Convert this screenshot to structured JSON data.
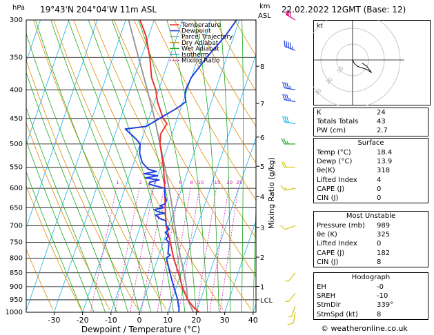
{
  "header": {
    "hpa_label": "hPa",
    "location": "19°43'N  204°04'W  11m  ASL",
    "km_label": "km",
    "asl_label": "ASL",
    "datetime": "22.02.2022  12GMT  (Base: 12)"
  },
  "legend": [
    {
      "name": "Temperature",
      "color": "#e8312c"
    },
    {
      "name": "Dewpoint",
      "color": "#1f3fe0"
    },
    {
      "name": "Parcel Trajectory",
      "color": "#999999"
    },
    {
      "name": "Dry Adiabat",
      "color": "#e08a00"
    },
    {
      "name": "Wet Adiabat",
      "color": "#1aa81a"
    },
    {
      "name": "Isotherm",
      "color": "#19b0e6"
    },
    {
      "name": "Mixing Ratio",
      "color": "#d01bb0"
    }
  ],
  "chart_data": {
    "type": "skew-t",
    "xlabel": "Dewpoint / Temperature (°C)",
    "ylabel_right": "Mixing Ratio (g/kg)",
    "x_ticks": [
      -30,
      -20,
      -10,
      0,
      10,
      20,
      30,
      40
    ],
    "pressure_levels": [
      300,
      350,
      400,
      450,
      500,
      550,
      600,
      650,
      700,
      750,
      800,
      850,
      900,
      950,
      1000
    ],
    "km_ticks": [
      {
        "label": "8",
        "p": 363
      },
      {
        "label": "7",
        "p": 423
      },
      {
        "label": "6",
        "p": 486
      },
      {
        "label": "5",
        "p": 548
      },
      {
        "label": "4",
        "p": 621
      },
      {
        "label": "3",
        "p": 705
      },
      {
        "label": "2",
        "p": 797
      },
      {
        "label": "1",
        "p": 899
      },
      {
        "label": "LCL",
        "p": 950
      }
    ],
    "mixing_ratio_labels": [
      "1",
      "2",
      "3",
      "4",
      "6",
      "8",
      "10",
      "15",
      "20",
      "25"
    ],
    "temperature": [
      [
        1005,
        20
      ],
      [
        1000,
        21
      ],
      [
        975,
        18
      ],
      [
        950,
        15.5
      ],
      [
        900,
        12
      ],
      [
        850,
        9
      ],
      [
        800,
        5.5
      ],
      [
        750,
        2.5
      ],
      [
        700,
        -1
      ],
      [
        650,
        -3.5
      ],
      [
        600,
        -6
      ],
      [
        550,
        -9
      ],
      [
        500,
        -13
      ],
      [
        480,
        -14
      ],
      [
        460,
        -13
      ],
      [
        450,
        -15
      ],
      [
        420,
        -19
      ],
      [
        400,
        -21
      ],
      [
        380,
        -24
      ],
      [
        350,
        -27
      ],
      [
        320,
        -31
      ],
      [
        300,
        -35
      ]
    ],
    "dewpoint": [
      [
        1005,
        14
      ],
      [
        1000,
        13.9
      ],
      [
        985,
        13.5
      ],
      [
        975,
        13
      ],
      [
        950,
        12
      ],
      [
        900,
        9
      ],
      [
        850,
        6
      ],
      [
        800,
        3
      ],
      [
        790,
        4
      ],
      [
        785,
        3
      ],
      [
        750,
        2
      ],
      [
        740,
        0.5
      ],
      [
        730,
        1
      ],
      [
        720,
        -0.5
      ],
      [
        710,
        0.5
      ],
      [
        700,
        -1
      ],
      [
        690,
        -1.5
      ],
      [
        685,
        -2
      ],
      [
        680,
        -4
      ],
      [
        670,
        -6
      ],
      [
        665,
        -3
      ],
      [
        660,
        -6
      ],
      [
        655,
        -7
      ],
      [
        650,
        -4
      ],
      [
        645,
        -5.5
      ],
      [
        640,
        -4
      ],
      [
        630,
        -4
      ],
      [
        620,
        -5
      ],
      [
        600,
        -6
      ],
      [
        595,
        -9
      ],
      [
        590,
        -12
      ],
      [
        585,
        -12
      ],
      [
        580,
        -9
      ],
      [
        575,
        -14
      ],
      [
        570,
        -10
      ],
      [
        565,
        -15
      ],
      [
        560,
        -11
      ],
      [
        555,
        -14
      ],
      [
        540,
        -17
      ],
      [
        520,
        -19
      ],
      [
        500,
        -20
      ],
      [
        490,
        -22
      ],
      [
        470,
        -27
      ],
      [
        465,
        -20
      ],
      [
        430,
        -11
      ],
      [
        420,
        -9
      ],
      [
        410,
        -10
      ],
      [
        400,
        -10.5
      ],
      [
        380,
        -10
      ],
      [
        350,
        -7
      ],
      [
        320,
        -3
      ],
      [
        300,
        -1
      ]
    ],
    "parcel": [
      [
        1000,
        19
      ],
      [
        950,
        15.5
      ],
      [
        900,
        13.5
      ],
      [
        850,
        11
      ],
      [
        800,
        8
      ],
      [
        750,
        5
      ],
      [
        700,
        2
      ],
      [
        650,
        -1
      ],
      [
        600,
        -4.5
      ],
      [
        550,
        -8.5
      ],
      [
        500,
        -13
      ],
      [
        450,
        -18
      ],
      [
        400,
        -24
      ],
      [
        350,
        -31
      ],
      [
        300,
        -39
      ]
    ],
    "wind_barbs": [
      {
        "p": 300,
        "dir": 300,
        "spd": 70
      },
      {
        "p": 340,
        "dir": 290,
        "spd": 45
      },
      {
        "p": 400,
        "dir": 280,
        "spd": 35
      },
      {
        "p": 420,
        "dir": 280,
        "spd": 35
      },
      {
        "p": 460,
        "dir": 280,
        "spd": 30
      },
      {
        "p": 500,
        "dir": 270,
        "spd": 25
      },
      {
        "p": 550,
        "dir": 270,
        "spd": 20
      },
      {
        "p": 600,
        "dir": 260,
        "spd": 15
      },
      {
        "p": 700,
        "dir": 250,
        "spd": 10
      },
      {
        "p": 850,
        "dir": 220,
        "spd": 5
      },
      {
        "p": 925,
        "dir": 220,
        "spd": 5
      },
      {
        "p": 975,
        "dir": 200,
        "spd": 5
      },
      {
        "p": 1000,
        "dir": 190,
        "spd": 10
      }
    ]
  },
  "hodograph": {
    "unit": "kt",
    "ring_labels": [
      "10",
      "20",
      "30"
    ],
    "points": [
      [
        0,
        0
      ],
      [
        1,
        -2
      ],
      [
        3,
        -4
      ],
      [
        6,
        -5
      ],
      [
        9,
        -6
      ],
      [
        12,
        -8
      ],
      [
        9,
        -4
      ],
      [
        6,
        -2
      ]
    ]
  },
  "indices": [
    {
      "label": "K",
      "value": "24"
    },
    {
      "label": "Totals Totals",
      "value": "43"
    },
    {
      "label": "PW (cm)",
      "value": "2.7"
    }
  ],
  "surface": {
    "title": "Surface",
    "rows": [
      {
        "label": "Temp (°C)",
        "value": "18.4"
      },
      {
        "label": "Dewp (°C)",
        "value": "13.9"
      },
      {
        "label": "θe(K)",
        "value": "318"
      },
      {
        "label": "Lifted Index",
        "value": "4"
      },
      {
        "label": "CAPE (J)",
        "value": "0"
      },
      {
        "label": "CIN (J)",
        "value": "0"
      }
    ]
  },
  "most_unstable": {
    "title": "Most Unstable",
    "rows": [
      {
        "label": "Pressure (mb)",
        "value": "989"
      },
      {
        "label": "θe (K)",
        "value": "325"
      },
      {
        "label": "Lifted Index",
        "value": "0"
      },
      {
        "label": "CAPE (J)",
        "value": "182"
      },
      {
        "label": "CIN (J)",
        "value": "8"
      }
    ]
  },
  "hodo_table": {
    "title": "Hodograph",
    "rows": [
      {
        "label": "EH",
        "value": "-0"
      },
      {
        "label": "SREH",
        "value": "-10"
      },
      {
        "label": "StmDir",
        "value": "339°"
      },
      {
        "label": "StmSpd (kt)",
        "value": "8"
      }
    ]
  },
  "footer": {
    "credit": "© weatheronline.co.uk"
  }
}
